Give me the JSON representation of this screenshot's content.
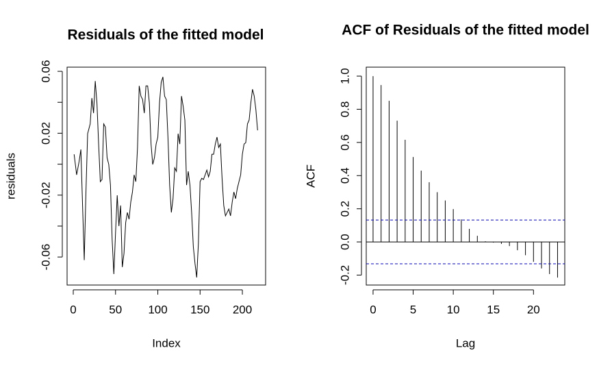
{
  "chart_data": [
    {
      "type": "line",
      "title": "Residuals of the fitted model",
      "xlabel": "Index",
      "ylabel": "residuals",
      "color": "#000000",
      "x": [
        1,
        4,
        7,
        9,
        11,
        13,
        15,
        17,
        20,
        22,
        24,
        26,
        28,
        30,
        32,
        34,
        36,
        38,
        40,
        42,
        44,
        46,
        48,
        50,
        52,
        54,
        56,
        58,
        60,
        62,
        64,
        66,
        68,
        70,
        72,
        74,
        76,
        78,
        80,
        82,
        84,
        86,
        88,
        90,
        92,
        94,
        96,
        98,
        100,
        102,
        104,
        106,
        108,
        110,
        112,
        114,
        116,
        118,
        120,
        122,
        124,
        126,
        128,
        130,
        132,
        134,
        136,
        138,
        140,
        142,
        144,
        146,
        148,
        150,
        152,
        154,
        156,
        158,
        160,
        162,
        164,
        166,
        168,
        170,
        172,
        174,
        176,
        178,
        180,
        182,
        184,
        186,
        188,
        190,
        192,
        194,
        196,
        198,
        200,
        202,
        204,
        206,
        208,
        210,
        212,
        214,
        216,
        218
      ],
      "values": [
        0.0064,
        -0.0069,
        0.002,
        0.0095,
        -0.0267,
        -0.062,
        -0.018,
        0.0197,
        0.026,
        0.0427,
        0.033,
        0.0537,
        0.0396,
        0.013,
        -0.0113,
        -0.0099,
        0.026,
        0.024,
        0.0042,
        -0.0002,
        -0.0135,
        -0.0489,
        -0.071,
        -0.0444,
        -0.0201,
        -0.04,
        -0.0267,
        -0.0665,
        -0.0577,
        -0.0378,
        -0.0312,
        -0.0356,
        -0.0245,
        -0.018,
        -0.0069,
        -0.0113,
        0.0108,
        0.0506,
        0.044,
        0.0418,
        0.033,
        0.0506,
        0.0506,
        0.0396,
        0.013,
        -0.0002,
        0.0042,
        0.013,
        0.0175,
        0.0396,
        0.0528,
        0.0564,
        0.044,
        0.0418,
        0.0175,
        -0.0135,
        -0.0312,
        -0.0223,
        -0.0024,
        -0.0046,
        0.0197,
        0.013,
        0.044,
        0.0374,
        0.0285,
        -0.0135,
        -0.0046,
        -0.0135,
        -0.0312,
        -0.0533,
        -0.0643,
        -0.0732,
        -0.0511,
        -0.0113,
        -0.0091,
        -0.0099,
        -0.0069,
        -0.0038,
        -0.0082,
        -0.0046,
        0.0064,
        0.0064,
        0.013,
        0.0175,
        0.0108,
        0.013,
        -0.0091,
        -0.0267,
        -0.0334,
        -0.0312,
        -0.029,
        -0.0334,
        -0.0245,
        -0.018,
        -0.0223,
        -0.0157,
        -0.0113,
        -0.0069,
        0.0064,
        0.013,
        0.0139,
        0.026,
        0.0285,
        0.0396,
        0.0484,
        0.044,
        0.0351,
        0.0219
      ],
      "xlim": [
        -7.3,
        227.5
      ],
      "ylim": [
        -0.0781,
        0.0627
      ],
      "xticks": [
        0,
        50,
        100,
        150,
        200
      ],
      "yticks": [
        -0.06,
        {
          "value": -0.04,
          "label": null
        },
        -0.02,
        {
          "value": 0,
          "label": null
        },
        0.02,
        {
          "value": 0.04,
          "label": null
        },
        0.06
      ]
    },
    {
      "type": "stem",
      "title": "ACF of Residuals of the fitted model",
      "xlabel": "Lag",
      "ylabel": "ACF",
      "color": "#000000",
      "x": [
        0,
        1,
        2,
        3,
        4,
        5,
        6,
        7,
        8,
        9,
        10,
        11,
        12,
        13,
        14,
        15,
        16,
        17,
        18,
        19,
        20,
        21,
        22,
        23
      ],
      "values": [
        1.0,
        0.946,
        0.851,
        0.731,
        0.616,
        0.512,
        0.43,
        0.36,
        0.3,
        0.25,
        0.198,
        0.136,
        0.079,
        0.037,
        0.004,
        -0.004,
        -0.012,
        -0.025,
        -0.05,
        -0.08,
        -0.12,
        -0.16,
        -0.194,
        -0.215
      ],
      "ci": 0.132,
      "ci_color": "#0000cc",
      "xlim": [
        -0.85,
        23.9
      ],
      "ylim": [
        -0.26,
        1.054
      ],
      "xticks": [
        0,
        5,
        10,
        15,
        20
      ],
      "yticks": [
        -0.2,
        {
          "value": 0,
          "label": "0.0"
        },
        0.2,
        0.4,
        0.6,
        0.8,
        {
          "value": 1,
          "label": "1.0"
        }
      ]
    }
  ]
}
